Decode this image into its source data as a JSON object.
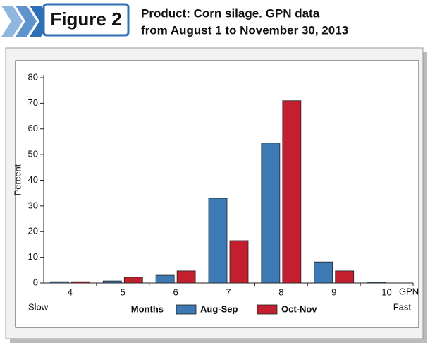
{
  "chart_data": {
    "type": "bar",
    "figure_label": "Figure 2",
    "title": [
      "Product: Corn silage. GPN data",
      "from August 1 to November 30, 2013"
    ],
    "ylabel": "Percent",
    "x_unit_label": "GPN",
    "x_start_label": "Slow",
    "x_end_label": "Fast",
    "legend_title": "Months",
    "categories": [
      "4",
      "5",
      "6",
      "7",
      "8",
      "9",
      "10"
    ],
    "series": [
      {
        "name": "Aug-Sep",
        "color": "#3d7ab5",
        "values": [
          0.5,
          0.8,
          3,
          33,
          54.5,
          8.2,
          0.3
        ]
      },
      {
        "name": "Oct-Nov",
        "color": "#c41f2e",
        "values": [
          0.5,
          2.2,
          4.7,
          16.5,
          71,
          4.7,
          0
        ]
      }
    ],
    "ylim": [
      0,
      80
    ],
    "yticks": [
      0,
      10,
      20,
      30,
      40,
      50,
      60,
      70,
      80
    ]
  }
}
